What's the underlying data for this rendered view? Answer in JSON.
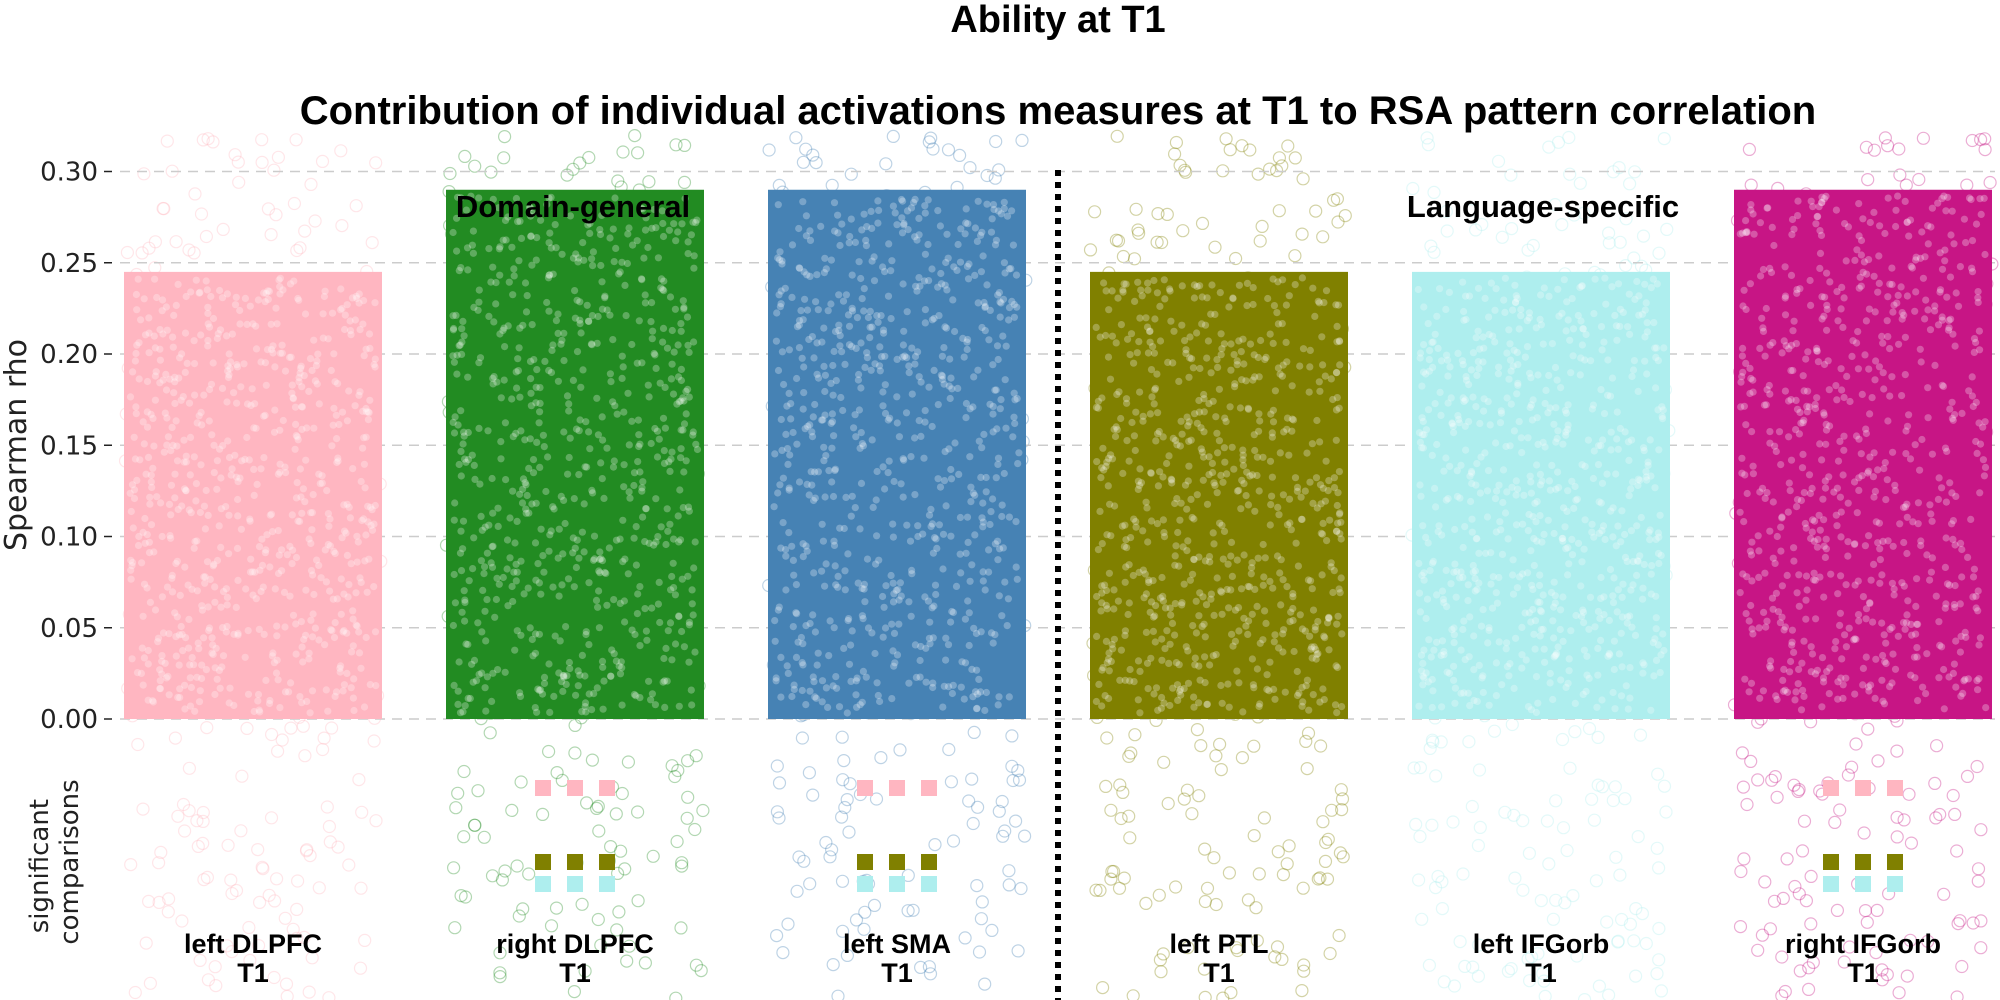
{
  "chart_data": {
    "type": "bar",
    "title": "Ability at T1",
    "subtitle": "Contribution of individual activations measures at T1 to RSA pattern correlation",
    "ylabel": "Spearman rho",
    "lower_panel_label": "significant\ncomparisons",
    "ylim": [
      0,
      0.32
    ],
    "yticks": [
      "0.00",
      "0.05",
      "0.10",
      "0.15",
      "0.20",
      "0.25",
      "0.30"
    ],
    "grid": true,
    "group_labels": [
      "Domain-general",
      "Language-specific"
    ],
    "categories": [
      {
        "label_line1": "left DLPFC",
        "label_line2": "T1",
        "value": 0.245,
        "color": "#ffb6c1",
        "sig": []
      },
      {
        "label_line1": "right DLPFC",
        "label_line2": "T1",
        "value": 0.29,
        "color": "#228b22",
        "sig": [
          "#ffb6c1",
          "#808000",
          "#aeeeee"
        ]
      },
      {
        "label_line1": "left SMA",
        "label_line2": "T1",
        "value": 0.29,
        "color": "#4682b4",
        "sig": [
          "#ffb6c1",
          "#808000",
          "#aeeeee"
        ]
      },
      {
        "label_line1": "left PTL",
        "label_line2": "T1",
        "value": 0.245,
        "color": "#808000",
        "sig": []
      },
      {
        "label_line1": "left IFGorb",
        "label_line2": "T1",
        "value": 0.245,
        "color": "#aeeeee",
        "sig": []
      },
      {
        "label_line1": "right IFGorb",
        "label_line2": "T1",
        "value": 0.29,
        "color": "#c71585",
        "sig": [
          "#ffb6c1",
          "#808000",
          "#aeeeee"
        ]
      }
    ]
  }
}
